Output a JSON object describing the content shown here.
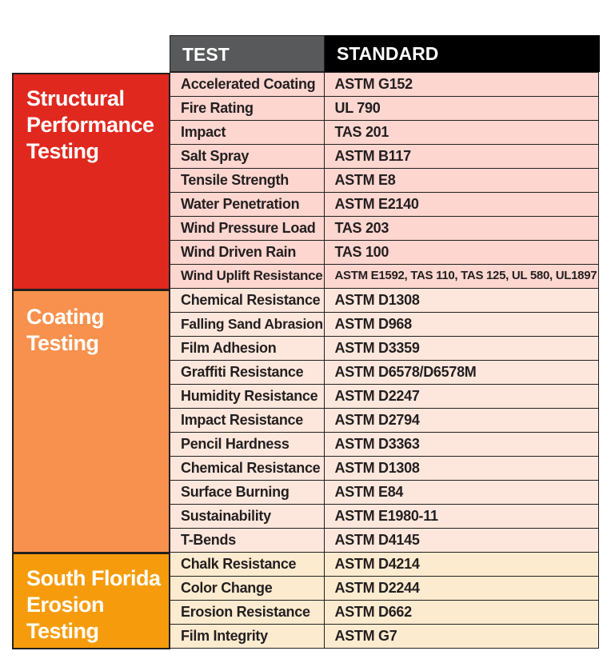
{
  "header": {
    "test_label": "TEST",
    "standard_label": "STANDARD"
  },
  "sections": [
    {
      "label": "Structural Performance Testing",
      "color": "#e0281e"
    },
    {
      "label": "Coating Testing",
      "color": "#f7914d"
    },
    {
      "label": "South Florida Erosion Testing",
      "color": "#f69c0c"
    }
  ],
  "rows": [
    {
      "group": "structural",
      "test": "Accelerated Coating",
      "standard": "ASTM G152"
    },
    {
      "group": "structural",
      "test": "Fire Rating",
      "standard": "UL 790"
    },
    {
      "group": "structural",
      "test": "Impact",
      "standard": "TAS 201"
    },
    {
      "group": "structural",
      "test": "Salt Spray",
      "standard": "ASTM B117"
    },
    {
      "group": "structural",
      "test": "Tensile Strength",
      "standard": "ASTM E8"
    },
    {
      "group": "structural",
      "test": "Water Penetration",
      "standard": "ASTM E2140"
    },
    {
      "group": "structural",
      "test": "Wind Pressure Load",
      "standard": "TAS 203"
    },
    {
      "group": "structural",
      "test": "Wind Driven Rain",
      "standard": "TAS 100"
    },
    {
      "group": "structural",
      "test": "Wind Uplift Resistance",
      "standard": "ASTM E1592, TAS 110, TAS 125, UL 580, UL1897"
    },
    {
      "group": "coating",
      "test": "Chemical Resistance",
      "standard": "ASTM D1308"
    },
    {
      "group": "coating",
      "test": "Falling Sand Abrasion",
      "standard": "ASTM D968"
    },
    {
      "group": "coating",
      "test": "Film Adhesion",
      "standard": "ASTM D3359"
    },
    {
      "group": "coating",
      "test": "Graffiti Resistance",
      "standard": "ASTM D6578/D6578M"
    },
    {
      "group": "coating",
      "test": "Humidity Resistance",
      "standard": "ASTM D2247"
    },
    {
      "group": "coating",
      "test": "Impact Resistance",
      "standard": "ASTM D2794"
    },
    {
      "group": "coating",
      "test": "Pencil Hardness",
      "standard": "ASTM D3363"
    },
    {
      "group": "coating",
      "test": "Chemical Resistance",
      "standard": "ASTM D1308"
    },
    {
      "group": "coating",
      "test": "Surface Burning",
      "standard": "ASTM E84"
    },
    {
      "group": "coating",
      "test": "Sustainability",
      "standard": "ASTM E1980-11"
    },
    {
      "group": "coating",
      "test": "T-Bends",
      "standard": "ASTM D4145"
    },
    {
      "group": "florida",
      "test": "Chalk Resistance",
      "standard": "ASTM D4214"
    },
    {
      "group": "florida",
      "test": "Color Change",
      "standard": "ASTM D2244"
    },
    {
      "group": "florida",
      "test": "Erosion Resistance",
      "standard": "ASTM D662"
    },
    {
      "group": "florida",
      "test": "Film Integrity",
      "standard": "ASTM G7"
    }
  ]
}
